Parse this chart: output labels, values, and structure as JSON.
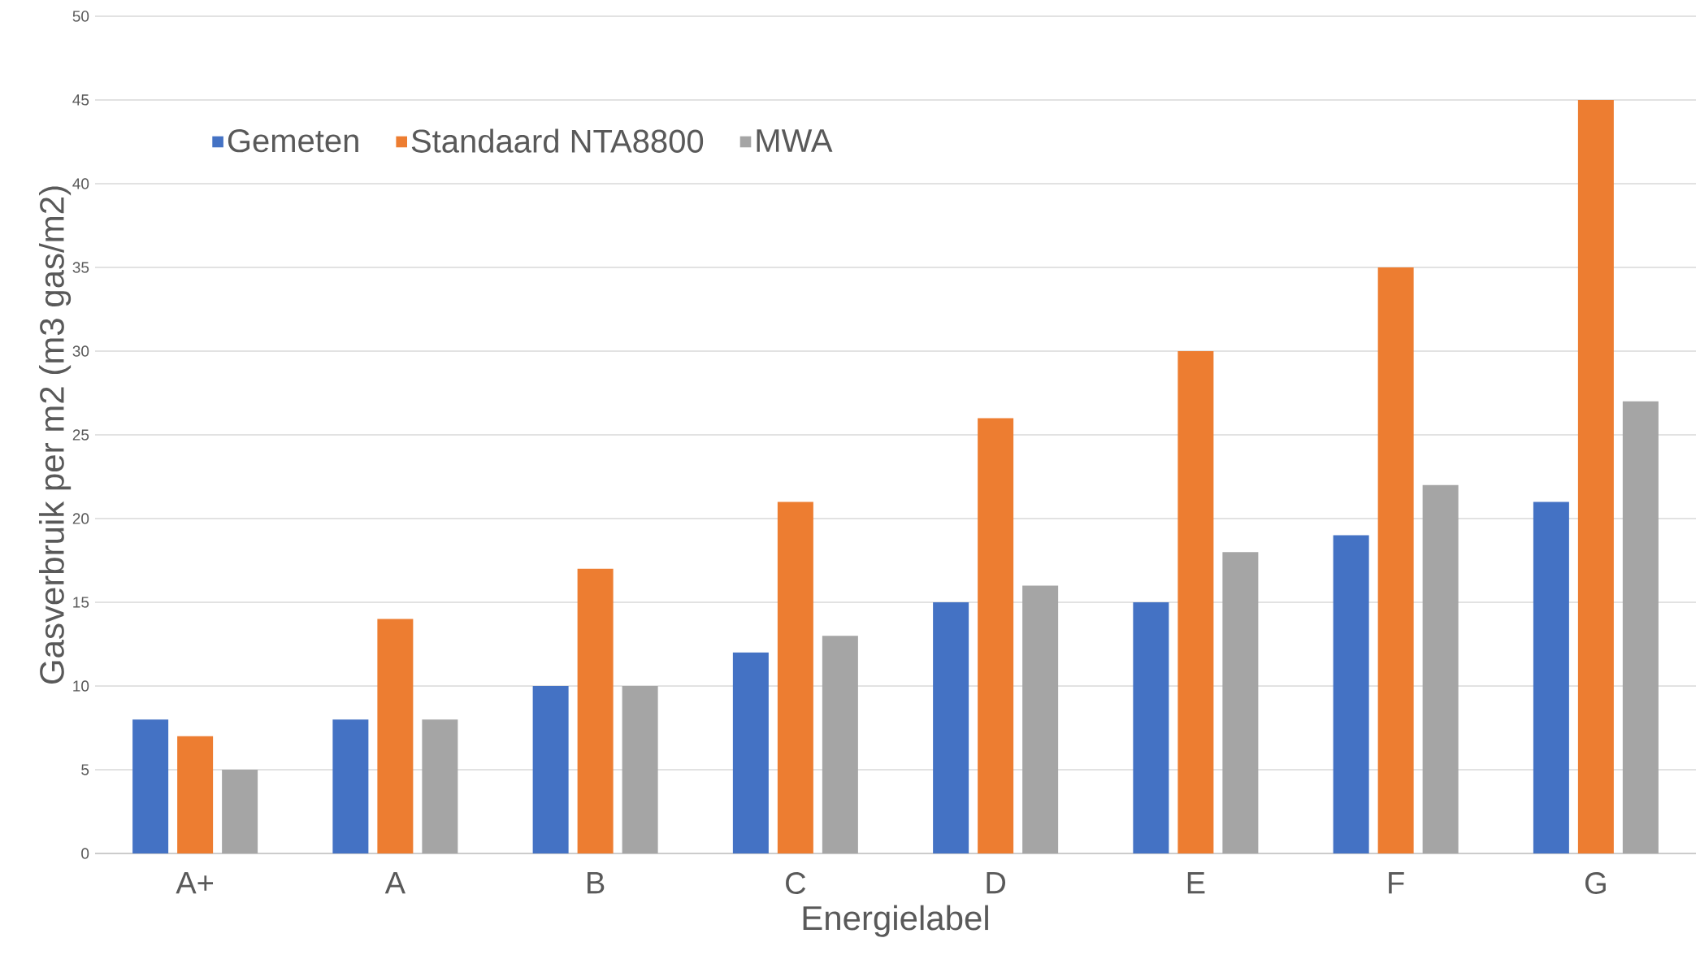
{
  "chart_data": {
    "type": "bar",
    "xlabel": "Energielabel",
    "ylabel": "Gasverbruik per m2 (m3 gas/m2)",
    "categories": [
      "A+",
      "A",
      "B",
      "C",
      "D",
      "E",
      "F",
      "G"
    ],
    "series": [
      {
        "name": "Gemeten",
        "color": "#4472c4",
        "values": [
          8,
          8,
          10,
          12,
          15,
          15,
          19,
          21
        ]
      },
      {
        "name": "Standaard NTA8800",
        "color": "#ed7d31",
        "values": [
          7,
          14,
          17,
          21,
          26,
          30,
          35,
          45
        ]
      },
      {
        "name": "MWA",
        "color": "#a5a5a5",
        "values": [
          5,
          8,
          10,
          13,
          16,
          18,
          22,
          27
        ]
      }
    ],
    "ylim": [
      0,
      50
    ],
    "yticks": [
      0,
      5,
      10,
      15,
      20,
      25,
      30,
      35,
      40,
      45,
      50
    ],
    "grid": "y",
    "legend": "top left"
  }
}
